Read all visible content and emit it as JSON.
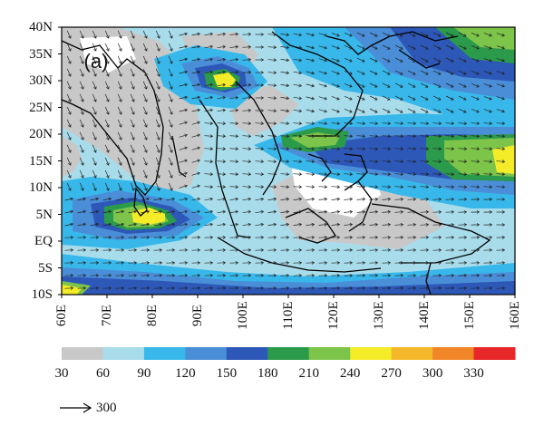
{
  "panel_label": "(a)",
  "latitude_labels": [
    "40N",
    "35N",
    "30N",
    "25N",
    "20N",
    "15N",
    "10N",
    "5N",
    "EQ",
    "5S",
    "10S"
  ],
  "longitude_labels": [
    "60E",
    "70E",
    "80E",
    "90E",
    "100E",
    "110E",
    "120E",
    "130E",
    "140E",
    "150E",
    "160E"
  ],
  "colorbar": {
    "ticks": [
      "30",
      "60",
      "90",
      "120",
      "150",
      "180",
      "210",
      "240",
      "270",
      "300",
      "330"
    ],
    "colors": [
      "#c8c8c8",
      "#a8dcea",
      "#38b8ea",
      "#4a8ed8",
      "#2d58b8",
      "#2b9a4a",
      "#7cc44a",
      "#f4ec28",
      "#f5b82a",
      "#f08628",
      "#e82828"
    ]
  },
  "reference_vector": {
    "value": "300"
  },
  "map_extent": {
    "lon": [
      60,
      160
    ],
    "lat": [
      -10,
      40
    ]
  }
}
